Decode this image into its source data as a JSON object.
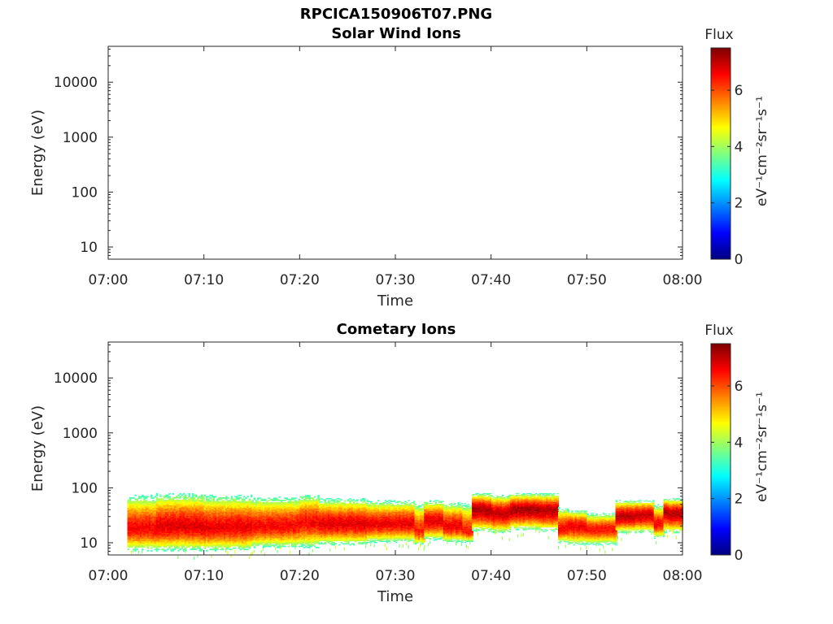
{
  "figure_title": "RPCICA150906T07.PNG",
  "chart_data": [
    {
      "type": "heatmap",
      "title": "Solar Wind Ions",
      "xlabel": "Time",
      "ylabel": "Energy (eV)",
      "x_ticks": [
        "07:00",
        "07:10",
        "07:20",
        "07:30",
        "07:40",
        "07:50",
        "08:00"
      ],
      "xlim": [
        "07:00",
        "08:00"
      ],
      "y_scale": "log",
      "y_ticks": [
        10,
        100,
        1000,
        10000
      ],
      "y_tick_labels": [
        "10",
        "100",
        "1000",
        "10000"
      ],
      "ylim": [
        6,
        45000
      ],
      "colorbar": {
        "title": "Flux",
        "label": "eV⁻¹cm⁻²sr⁻¹s⁻¹",
        "range": [
          0,
          7.5
        ],
        "ticks": [
          0,
          2,
          4,
          6
        ],
        "colormap": "jet"
      },
      "bands": []
    },
    {
      "type": "heatmap",
      "title": "Cometary Ions",
      "xlabel": "Time",
      "ylabel": "Energy (eV)",
      "x_ticks": [
        "07:00",
        "07:10",
        "07:20",
        "07:30",
        "07:40",
        "07:50",
        "08:00"
      ],
      "xlim": [
        "07:00",
        "08:00"
      ],
      "y_scale": "log",
      "y_ticks": [
        10,
        100,
        1000,
        10000
      ],
      "y_tick_labels": [
        "10",
        "100",
        "1000",
        "10000"
      ],
      "ylim": [
        6,
        45000
      ],
      "colorbar": {
        "title": "Flux",
        "label": "eV⁻¹cm⁻²sr⁻¹s⁻¹",
        "range": [
          0,
          7.5
        ],
        "ticks": [
          0,
          2,
          4,
          6
        ],
        "colormap": "jet"
      },
      "data_start": "07:02",
      "data_end": "08:00",
      "bands": [
        {
          "t0": "07:02",
          "t1": "07:05",
          "e_min": 7,
          "e_max": 75,
          "peak_e": 18,
          "peak_flux": 6.6
        },
        {
          "t0": "07:05",
          "t1": "07:10",
          "e_min": 7,
          "e_max": 80,
          "peak_e": 20,
          "peak_flux": 6.8
        },
        {
          "t0": "07:10",
          "t1": "07:15",
          "e_min": 7,
          "e_max": 75,
          "peak_e": 19,
          "peak_flux": 6.7
        },
        {
          "t0": "07:15",
          "t1": "07:20",
          "e_min": 8,
          "e_max": 70,
          "peak_e": 20,
          "peak_flux": 6.6
        },
        {
          "t0": "07:20",
          "t1": "07:22",
          "e_min": 8,
          "e_max": 78,
          "peak_e": 24,
          "peak_flux": 6.6
        },
        {
          "t0": "07:22",
          "t1": "07:27",
          "e_min": 9,
          "e_max": 65,
          "peak_e": 22,
          "peak_flux": 6.8
        },
        {
          "t0": "07:27",
          "t1": "07:32",
          "e_min": 10,
          "e_max": 60,
          "peak_e": 22,
          "peak_flux": 6.7
        },
        {
          "t0": "07:32",
          "t1": "07:33",
          "e_min": 9,
          "e_max": 55,
          "peak_e": 16,
          "peak_flux": 6.4
        },
        {
          "t0": "07:33",
          "t1": "07:35",
          "e_min": 11,
          "e_max": 60,
          "peak_e": 25,
          "peak_flux": 6.8
        },
        {
          "t0": "07:35",
          "t1": "07:37",
          "e_min": 10,
          "e_max": 55,
          "peak_e": 20,
          "peak_flux": 6.7
        },
        {
          "t0": "07:37",
          "t1": "07:38",
          "e_min": 10,
          "e_max": 55,
          "peak_e": 16,
          "peak_flux": 6.4
        },
        {
          "t0": "07:38",
          "t1": "07:40",
          "e_min": 16,
          "e_max": 80,
          "peak_e": 40,
          "peak_flux": 7.2
        },
        {
          "t0": "07:40",
          "t1": "07:42",
          "e_min": 15,
          "e_max": 75,
          "peak_e": 35,
          "peak_flux": 7.0
        },
        {
          "t0": "07:42",
          "t1": "07:45",
          "e_min": 17,
          "e_max": 80,
          "peak_e": 40,
          "peak_flux": 7.2
        },
        {
          "t0": "07:45",
          "t1": "07:47",
          "e_min": 16,
          "e_max": 80,
          "peak_e": 38,
          "peak_flux": 7.1
        },
        {
          "t0": "07:47",
          "t1": "07:48",
          "e_min": 10,
          "e_max": 45,
          "peak_e": 18,
          "peak_flux": 6.6
        },
        {
          "t0": "07:48",
          "t1": "07:50",
          "e_min": 9,
          "e_max": 40,
          "peak_e": 20,
          "peak_flux": 6.7
        },
        {
          "t0": "07:50",
          "t1": "07:53",
          "e_min": 9,
          "e_max": 35,
          "peak_e": 18,
          "peak_flux": 6.5
        },
        {
          "t0": "07:53",
          "t1": "07:55",
          "e_min": 15,
          "e_max": 60,
          "peak_e": 30,
          "peak_flux": 7.1
        },
        {
          "t0": "07:55",
          "t1": "07:57",
          "e_min": 15,
          "e_max": 60,
          "peak_e": 32,
          "peak_flux": 7.0
        },
        {
          "t0": "07:57",
          "t1": "07:58",
          "e_min": 12,
          "e_max": 50,
          "peak_e": 22,
          "peak_flux": 6.6
        },
        {
          "t0": "07:58",
          "t1": "08:00",
          "e_min": 15,
          "e_max": 65,
          "peak_e": 35,
          "peak_flux": 7.1
        }
      ]
    }
  ]
}
